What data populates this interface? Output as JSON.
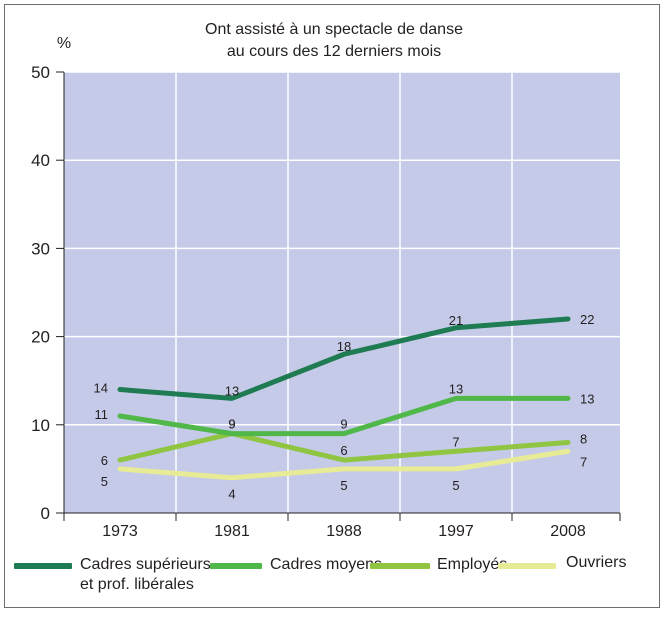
{
  "chart_data": {
    "type": "line",
    "title": "Ont assisté à un spectacle de danse au cours des 12 derniers mois",
    "title_lines": [
      "Ont assisté à un spectacle de danse",
      "au cours des 12 derniers mois"
    ],
    "ylabel": "%",
    "ylim": [
      0,
      50
    ],
    "yticks": [
      0,
      10,
      20,
      30,
      40,
      50
    ],
    "categories": [
      "1973",
      "1981",
      "1988",
      "1997",
      "2008"
    ],
    "grid": true,
    "legend_position": "bottom",
    "background_color": "#c5cae8",
    "series": [
      {
        "name": "Cadres supérieurs et prof. libérales",
        "name_lines": [
          "Cadres supérieurs",
          "et prof. libérales"
        ],
        "values": [
          14,
          13,
          18,
          21,
          22
        ],
        "color": "#1e7b52"
      },
      {
        "name": "Cadres moyens",
        "values": [
          11,
          9,
          9,
          13,
          13
        ],
        "color": "#4fb848"
      },
      {
        "name": "Employés",
        "values": [
          6,
          9,
          6,
          7,
          8
        ],
        "color": "#8fc541"
      },
      {
        "name": "Ouvriers",
        "values": [
          5,
          4,
          5,
          5,
          7
        ],
        "color": "#e8eb96"
      }
    ]
  }
}
